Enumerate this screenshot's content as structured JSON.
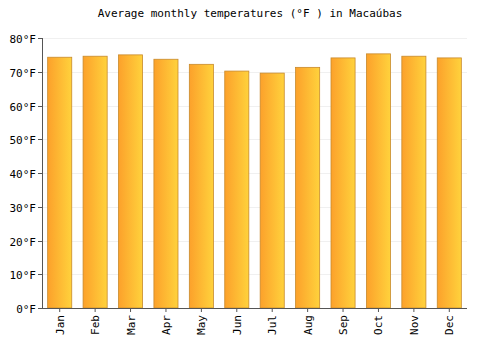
{
  "chart_data": {
    "type": "bar",
    "title": "Average monthly temperatures (°F ) in Macaúbas",
    "categories": [
      "Jan",
      "Feb",
      "Mar",
      "Apr",
      "May",
      "Jun",
      "Jul",
      "Aug",
      "Sep",
      "Oct",
      "Nov",
      "Dec"
    ],
    "values": [
      74.3,
      74.6,
      75.0,
      73.7,
      72.2,
      70.2,
      69.6,
      71.3,
      74.1,
      75.3,
      74.6,
      74.1
    ],
    "color": "#fca12b",
    "ylim": [
      0,
      80
    ],
    "yticks": [
      {
        "value": 0,
        "label": "0°F"
      },
      {
        "value": 10,
        "label": "10°F"
      },
      {
        "value": 20,
        "label": "20°F"
      },
      {
        "value": 30,
        "label": "30°F"
      },
      {
        "value": 40,
        "label": "40°F"
      },
      {
        "value": 50,
        "label": "50°F"
      },
      {
        "value": 60,
        "label": "60°F"
      },
      {
        "value": 70,
        "label": "70°F"
      },
      {
        "value": 80,
        "label": "80°F"
      }
    ],
    "grid": true
  }
}
